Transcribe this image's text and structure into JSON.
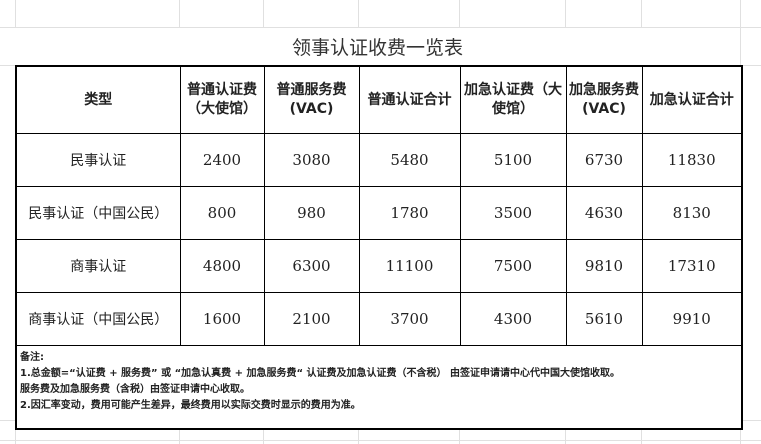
{
  "title": "领事认证收费一览表",
  "headers": [
    "类型",
    "普通认证费（大使馆）",
    "普通服务费 (VAC)",
    "普通认证合计",
    "加急认证费（大使馆）",
    "加急服务费 (VAC)",
    "加急认证合计"
  ],
  "rows": [
    {
      "type": "民事认证",
      "values": [
        "2400",
        "3080",
        "5480",
        "5100",
        "6730",
        "11830"
      ]
    },
    {
      "type": "民事认证（中国公民）",
      "values": [
        "800",
        "980",
        "1780",
        "3500",
        "4630",
        "8130"
      ]
    },
    {
      "type": "商事认证",
      "values": [
        "4800",
        "6300",
        "11100",
        "7500",
        "9810",
        "17310"
      ]
    },
    {
      "type": "商事认证（中国公民）",
      "values": [
        "1600",
        "2100",
        "3700",
        "4300",
        "5610",
        "9910"
      ]
    }
  ],
  "notes": {
    "label": "备注:",
    "line1": "1.总金额=“认证费 + 服务费” 或 “加急认真费 + 加急服务费“ 认证费及加急认证费（不含税） 由签证申请请中心代中国大使馆收取。",
    "line2": "服务费及加急服务费（含税）由签证申请中心收取。",
    "line3": "2.因汇率变动，费用可能产生差异，最终费用以实际交费时显示的费用为准。"
  }
}
